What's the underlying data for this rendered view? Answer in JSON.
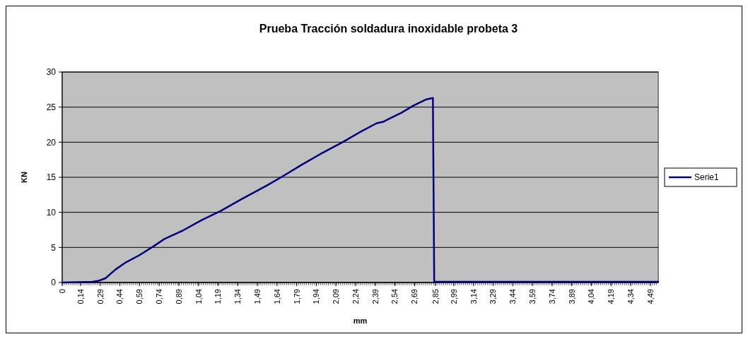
{
  "chart_data": {
    "type": "line",
    "title": "Prueba Tracción soldadura inoxidable probeta 3",
    "xlabel": "mm",
    "ylabel": "KN",
    "xlim": [
      0,
      4.55
    ],
    "xticks": [
      {
        "value": 0,
        "label": "0"
      },
      {
        "value": 0.14,
        "label": "0,14"
      },
      {
        "value": 0.29,
        "label": "0,29"
      },
      {
        "value": 0.44,
        "label": "0,44"
      },
      {
        "value": 0.59,
        "label": "0,59"
      },
      {
        "value": 0.74,
        "label": "0,74"
      },
      {
        "value": 0.89,
        "label": "0,89"
      },
      {
        "value": 1.04,
        "label": "1,04"
      },
      {
        "value": 1.19,
        "label": "1,19"
      },
      {
        "value": 1.34,
        "label": "1,34"
      },
      {
        "value": 1.49,
        "label": "1,49"
      },
      {
        "value": 1.64,
        "label": "1,64"
      },
      {
        "value": 1.79,
        "label": "1,79"
      },
      {
        "value": 1.94,
        "label": "1,94"
      },
      {
        "value": 2.09,
        "label": "2,09"
      },
      {
        "value": 2.24,
        "label": "2,24"
      },
      {
        "value": 2.39,
        "label": "2,39"
      },
      {
        "value": 2.54,
        "label": "2,54"
      },
      {
        "value": 2.69,
        "label": "2,69"
      },
      {
        "value": 2.85,
        "label": "2,85"
      },
      {
        "value": 2.99,
        "label": "2,99"
      },
      {
        "value": 3.14,
        "label": "3,14"
      },
      {
        "value": 3.29,
        "label": "3,29"
      },
      {
        "value": 3.44,
        "label": "3,44"
      },
      {
        "value": 3.59,
        "label": "3,59"
      },
      {
        "value": 3.74,
        "label": "3,74"
      },
      {
        "value": 3.89,
        "label": "3,89"
      },
      {
        "value": 4.04,
        "label": "4,04"
      },
      {
        "value": 4.19,
        "label": "4,19"
      },
      {
        "value": 4.34,
        "label": "4,34"
      },
      {
        "value": 4.49,
        "label": "4,49"
      }
    ],
    "ylim": [
      0,
      30
    ],
    "yticks": [
      0,
      5,
      10,
      15,
      20,
      25,
      30
    ],
    "grid": "y",
    "legend": "right",
    "marker": "none",
    "line_style": "solid",
    "series": [
      {
        "name": "Serie1",
        "color": "#000080",
        "x": [
          0,
          0.23,
          0.28,
          0.33,
          0.41,
          0.48,
          0.59,
          0.7,
          0.78,
          0.92,
          1.065,
          1.21,
          1.37,
          1.56,
          1.68,
          1.83,
          1.97,
          2.14,
          2.28,
          2.4,
          2.45,
          2.48,
          2.59,
          2.68,
          2.78,
          2.83,
          2.84,
          3.5,
          4.55
        ],
        "values": [
          0,
          0.1,
          0.25,
          0.6,
          1.9,
          2.8,
          3.9,
          5.2,
          6.2,
          7.4,
          8.9,
          10.2,
          11.9,
          13.8,
          15.1,
          16.8,
          18.3,
          20,
          21.5,
          22.7,
          22.9,
          23.2,
          24.2,
          25.2,
          26.1,
          26.3,
          0.1,
          0.1,
          0.1
        ]
      }
    ]
  }
}
